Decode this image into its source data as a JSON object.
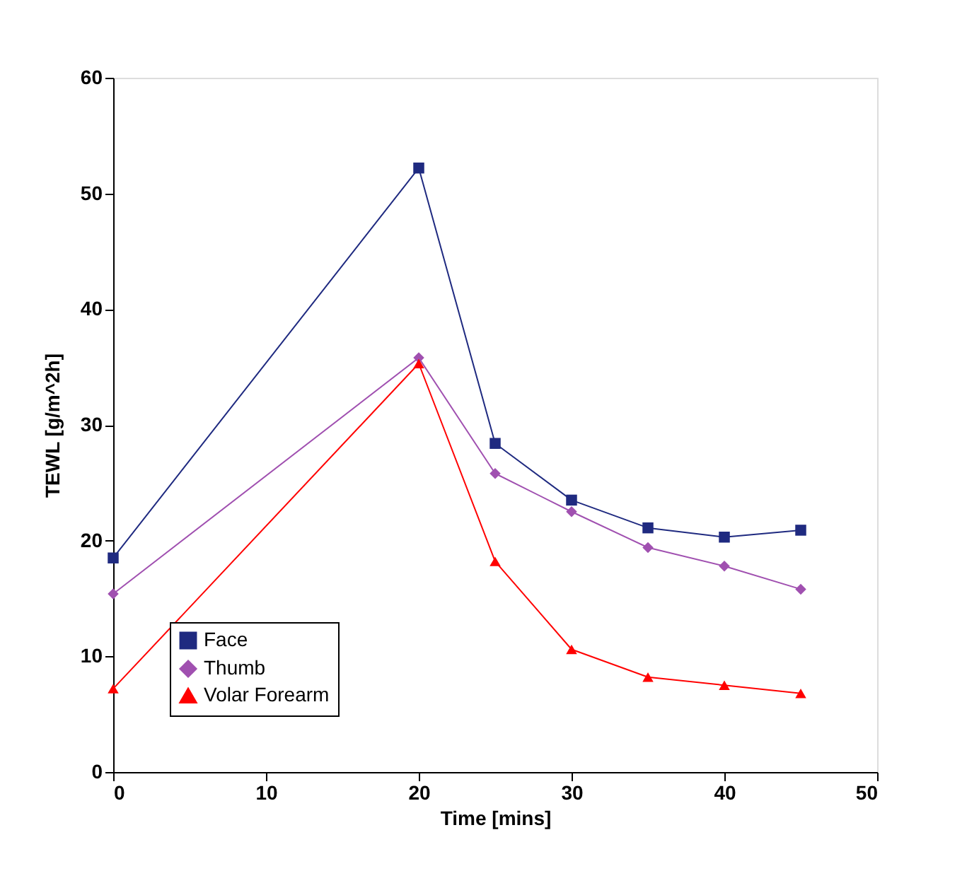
{
  "chart_data": {
    "type": "line",
    "xlabel": "Time [mins]",
    "ylabel": "TEWL [g/m^2h]",
    "x": [
      0,
      20,
      25,
      30,
      35,
      40,
      45
    ],
    "xlim": [
      0,
      50
    ],
    "xticks": [
      0,
      10,
      20,
      30,
      40,
      50
    ],
    "ylim": [
      0,
      60
    ],
    "yticks": [
      0,
      10,
      20,
      30,
      40,
      50,
      60
    ],
    "grid": false,
    "legend": "bottom left",
    "line_style": "solid",
    "series": [
      {
        "name": "Face",
        "color": "#1f2a80",
        "marker": "square",
        "values": [
          18.5,
          52.2,
          28.4,
          23.5,
          21.1,
          20.3,
          20.9
        ]
      },
      {
        "name": "Thumb",
        "color": "#a050b0",
        "marker": "diamond",
        "values": [
          15.4,
          35.8,
          25.8,
          22.5,
          19.4,
          17.8,
          15.8
        ]
      },
      {
        "name": "Volar Forearm",
        "color": "#ff0000",
        "marker": "triangle",
        "values": [
          7.2,
          35.3,
          18.2,
          10.6,
          8.2,
          7.5,
          6.8
        ]
      }
    ]
  }
}
